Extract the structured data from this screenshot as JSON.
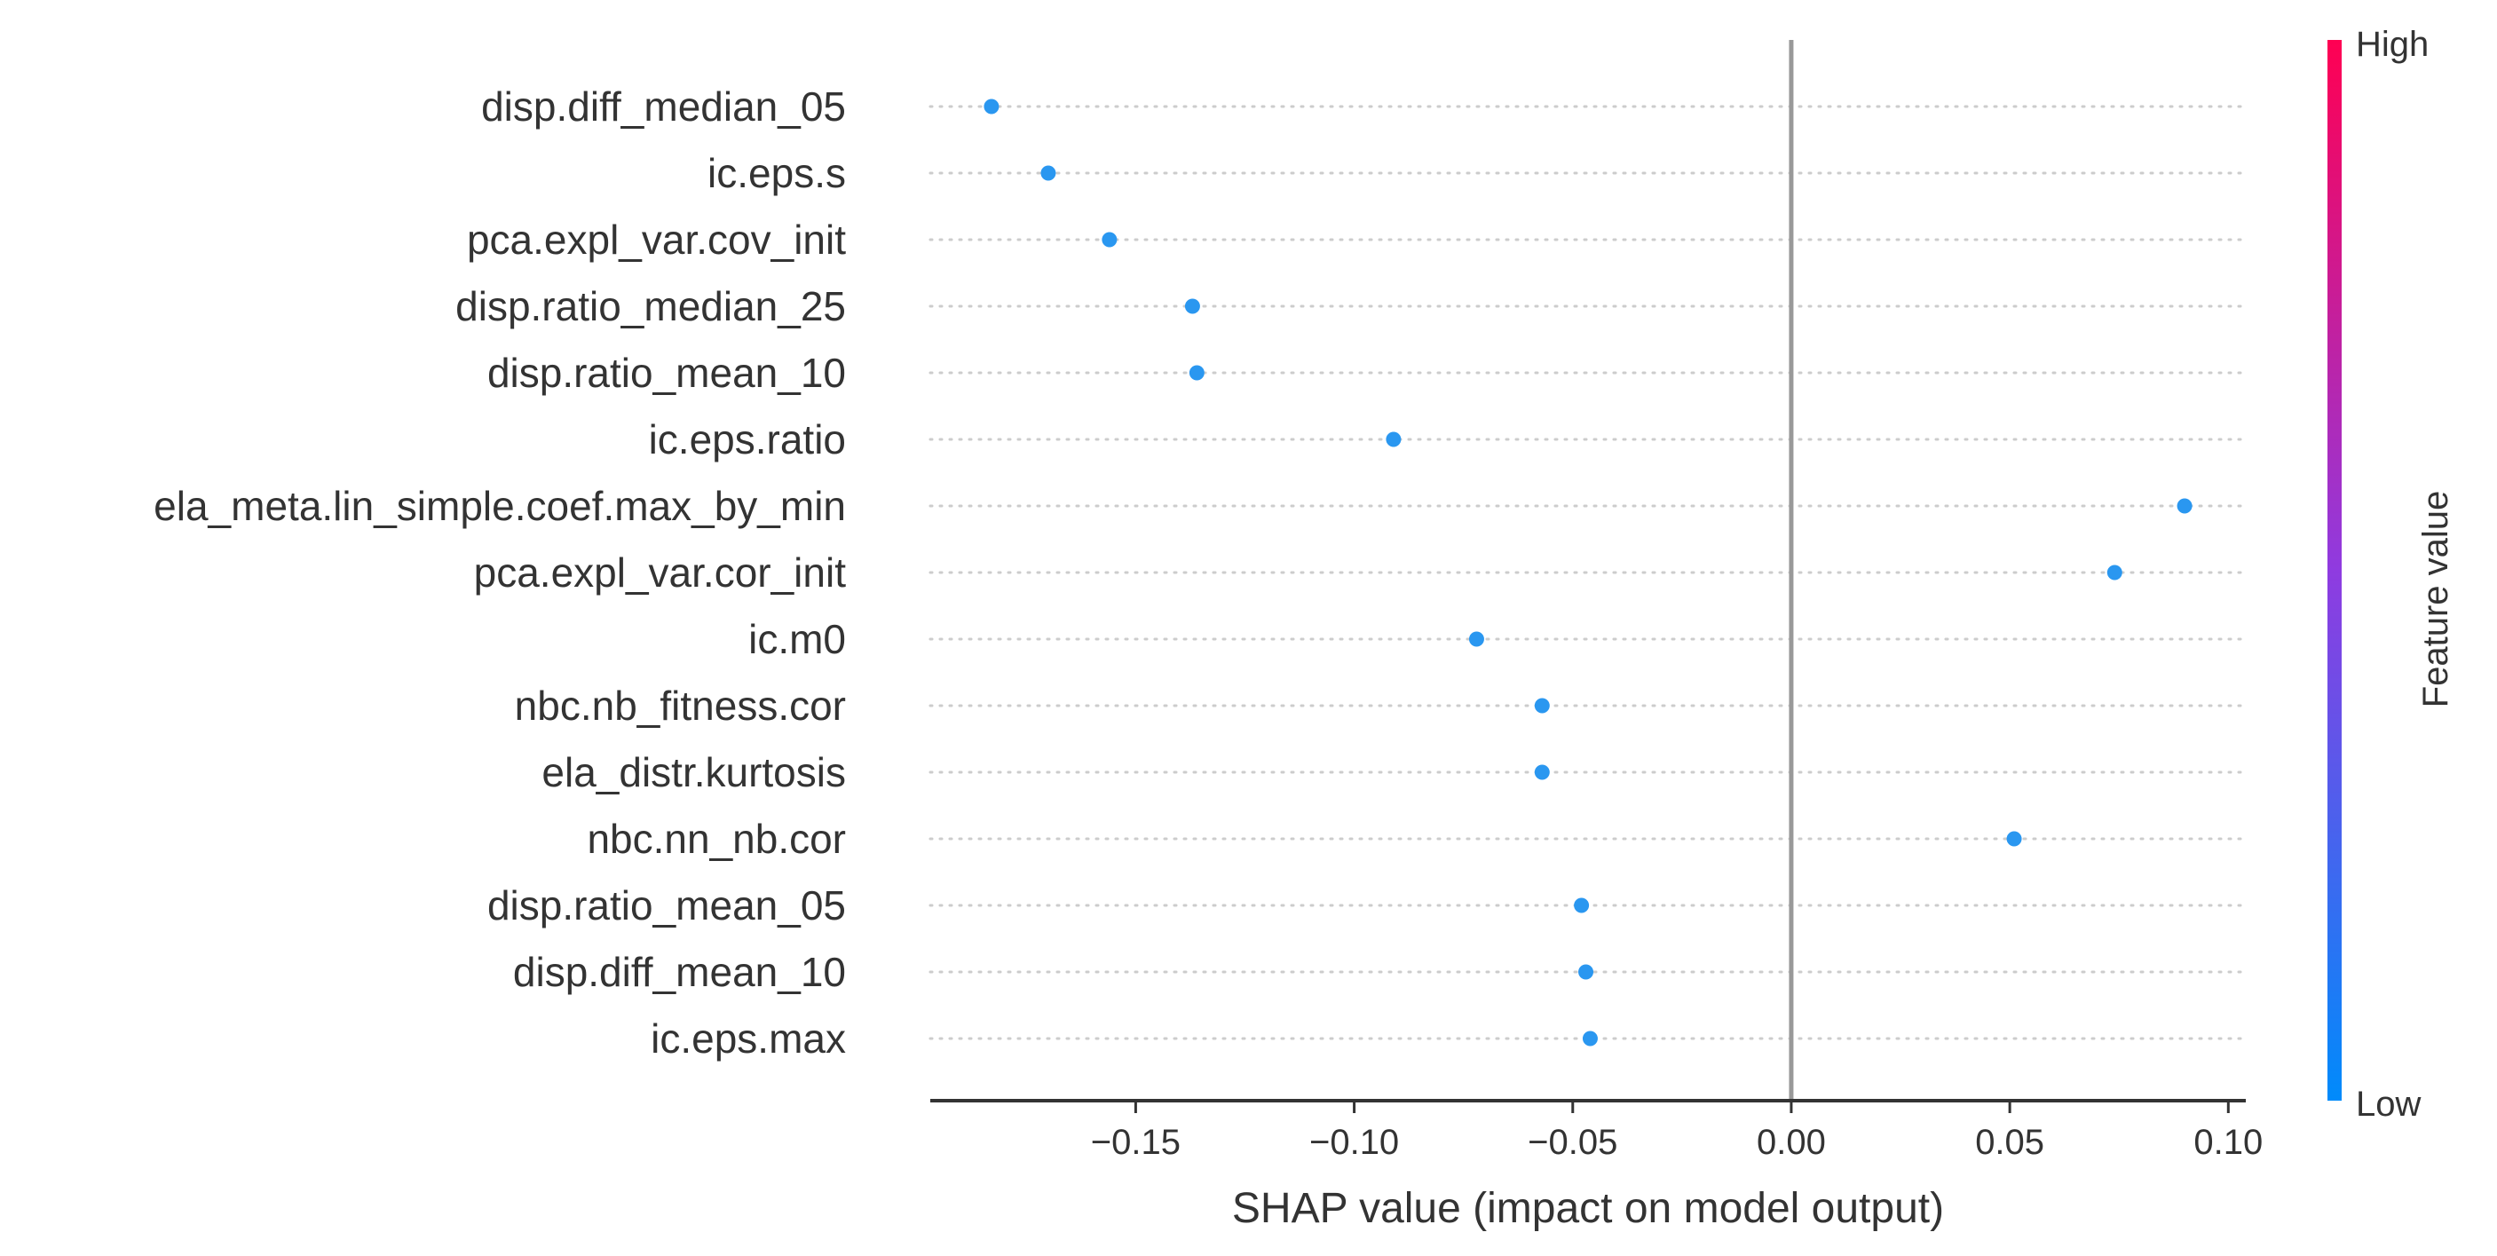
{
  "chart_data": {
    "type": "scatter",
    "xlabel": "SHAP value (impact on model output)",
    "xlim": [
      -0.197,
      0.104
    ],
    "xticks": [
      -0.15,
      -0.1,
      -0.05,
      0.0,
      0.05,
      0.1
    ],
    "xtick_labels": [
      "−0.15",
      "−0.10",
      "−0.05",
      "0.00",
      "0.05",
      "0.10"
    ],
    "zero_line": 0.0,
    "features": [
      "disp.diff_median_05",
      "ic.eps.s",
      "pca.expl_var.cov_init",
      "disp.ratio_median_25",
      "disp.ratio_mean_10",
      "ic.eps.ratio",
      "ela_meta.lin_simple.coef.max_by_min",
      "pca.expl_var.cor_init",
      "ic.m0",
      "nbc.nb_fitness.cor",
      "ela_distr.kurtosis",
      "nbc.nn_nb.cor",
      "disp.ratio_mean_05",
      "disp.diff_mean_10",
      "ic.eps.max"
    ],
    "shap_values": [
      -0.183,
      -0.17,
      -0.156,
      -0.137,
      -0.136,
      -0.091,
      0.09,
      0.074,
      -0.072,
      -0.057,
      -0.057,
      0.051,
      -0.048,
      -0.047,
      -0.046
    ],
    "point_color": "#2a97f0",
    "colorbar": {
      "title": "Feature value",
      "high_label": "High",
      "low_label": "Low",
      "color_low": "#008bfb",
      "color_mid": "#8f3be0",
      "color_high": "#ff0052"
    },
    "grid": "dotted horizontal per feature"
  }
}
